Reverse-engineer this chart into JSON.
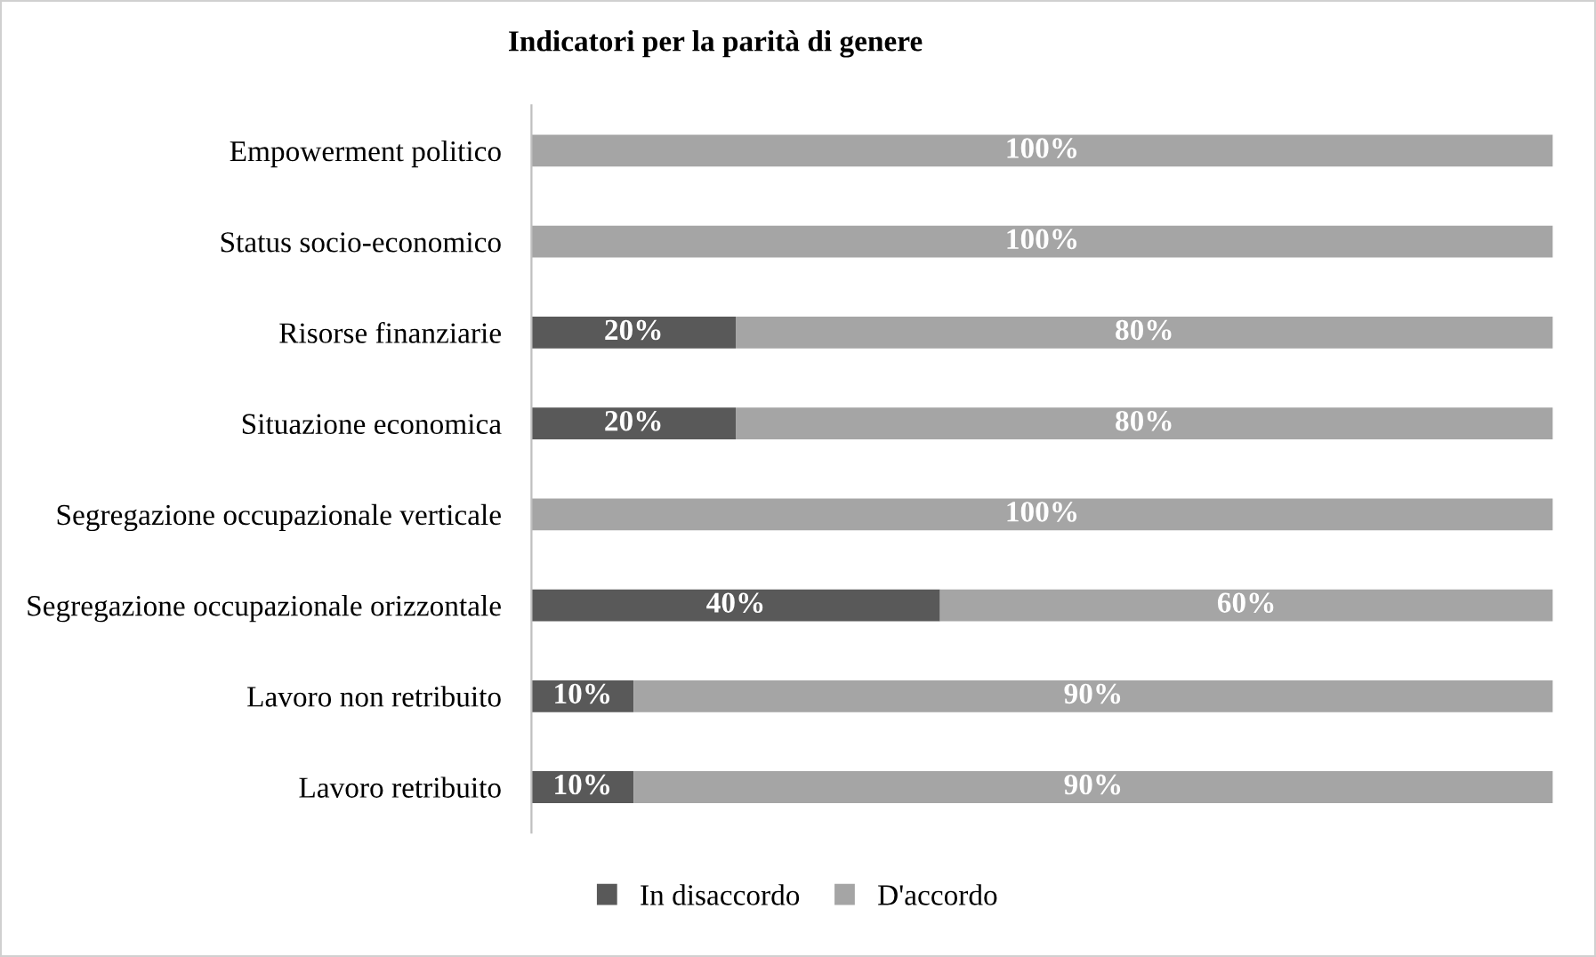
{
  "chart_data": {
    "type": "bar",
    "orientation": "horizontal",
    "stacked": true,
    "title": "Indicatori per la parità di genere",
    "categories": [
      "Empowerment politico",
      "Status socio-economico",
      "Risorse finanziarie",
      "Situazione economica",
      "Segregazione occupazionale verticale",
      "Segregazione occupazionale orizzontale",
      "Lavoro non retribuito",
      "Lavoro retribuito"
    ],
    "series": [
      {
        "name": "In disaccordo",
        "color": "#595959",
        "values": [
          null,
          null,
          20,
          20,
          null,
          40,
          10,
          10
        ],
        "value_labels": [
          null,
          null,
          "20%",
          "20%",
          null,
          "40%",
          "10%",
          "10%"
        ]
      },
      {
        "name": "D'accordo",
        "color": "#a5a5a5",
        "values": [
          100,
          100,
          80,
          80,
          100,
          60,
          90,
          90
        ],
        "value_labels": [
          "100%",
          "100%",
          "80%",
          "80%",
          "100%",
          "60%",
          "90%",
          "90%"
        ]
      }
    ],
    "legend": "bottom",
    "grid": false
  }
}
